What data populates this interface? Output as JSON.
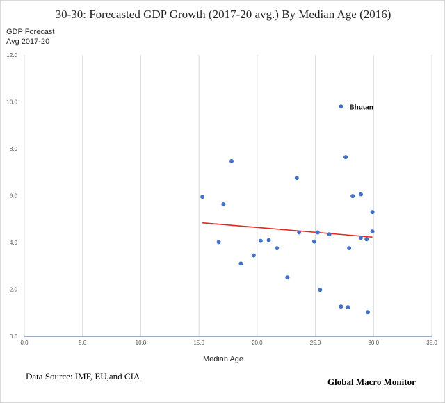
{
  "chart_data": {
    "type": "scatter",
    "title": "30-30: Forecasted GDP Growth (2017-20 avg.) By Median Age (2016)",
    "ylabel_lines": [
      "GDP Forecast",
      "Avg 2017-20"
    ],
    "xlabel": "Median Age",
    "xlim": [
      0,
      35
    ],
    "ylim": [
      0,
      12
    ],
    "x_ticks": [
      "0.0",
      "5.0",
      "10.0",
      "15.0",
      "20.0",
      "25.0",
      "30.0",
      "35.0"
    ],
    "y_ticks": [
      "0.0",
      "2.0",
      "4.0",
      "6.0",
      "8.0",
      "10.0",
      "12.0"
    ],
    "grid": "vertical",
    "point_color": "#4472c4",
    "trendline_color": "#e8261e",
    "points": [
      {
        "x": 15.3,
        "y": 5.95
      },
      {
        "x": 16.7,
        "y": 4.02
      },
      {
        "x": 17.1,
        "y": 5.63
      },
      {
        "x": 17.8,
        "y": 7.47
      },
      {
        "x": 18.6,
        "y": 3.1
      },
      {
        "x": 19.7,
        "y": 3.45
      },
      {
        "x": 20.3,
        "y": 4.07
      },
      {
        "x": 21.0,
        "y": 4.1
      },
      {
        "x": 21.7,
        "y": 3.76
      },
      {
        "x": 22.6,
        "y": 2.51
      },
      {
        "x": 23.4,
        "y": 6.75
      },
      {
        "x": 23.6,
        "y": 4.43
      },
      {
        "x": 24.9,
        "y": 4.04
      },
      {
        "x": 25.2,
        "y": 4.43
      },
      {
        "x": 25.4,
        "y": 1.98
      },
      {
        "x": 26.2,
        "y": 4.35
      },
      {
        "x": 27.2,
        "y": 9.8
      },
      {
        "x": 27.2,
        "y": 1.27
      },
      {
        "x": 27.6,
        "y": 7.64
      },
      {
        "x": 27.8,
        "y": 1.24
      },
      {
        "x": 27.9,
        "y": 3.76
      },
      {
        "x": 28.2,
        "y": 5.98
      },
      {
        "x": 28.9,
        "y": 6.06
      },
      {
        "x": 28.9,
        "y": 4.2
      },
      {
        "x": 29.4,
        "y": 4.14
      },
      {
        "x": 29.5,
        "y": 1.03
      },
      {
        "x": 29.9,
        "y": 5.3
      },
      {
        "x": 29.9,
        "y": 4.47
      }
    ],
    "trendline": {
      "x": [
        15.3,
        29.9
      ],
      "y": [
        4.84,
        4.23
      ]
    },
    "annotations": [
      {
        "text": "Bhutan",
        "x": 27.2,
        "y": 9.8
      }
    ]
  },
  "footer": {
    "source": "Data Source:  IMF, EU,and CIA",
    "brand": "Global Macro Monitor"
  }
}
